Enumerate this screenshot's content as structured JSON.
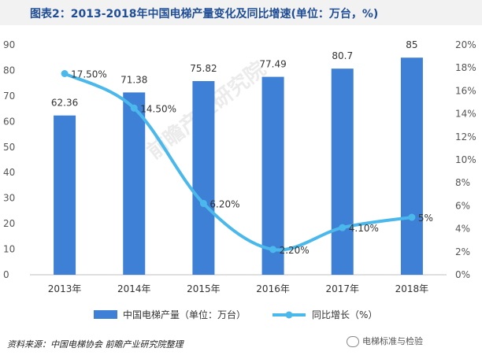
{
  "title": "图表2：2013-2018年中国电梯产量变化及同比增速(单位：万台，%)",
  "source": "资料来源：中国电梯协会 前瞻产业研究院整理",
  "brand": "电梯标准与检验",
  "watermark": "前瞻产业研究院",
  "colors": {
    "bar": "#3e80d6",
    "line": "#4bb8ec",
    "axis_text": "#555555",
    "title_bg": "#f2f2f2",
    "title_text": "#1f4e96"
  },
  "chart_data": {
    "type": "bar+line",
    "title": "图表2：2013-2018年中国电梯产量变化及同比增速(单位：万台，%)",
    "categories": [
      "2013年",
      "2014年",
      "2015年",
      "2016年",
      "2017年",
      "2018年"
    ],
    "series": [
      {
        "name": "中国电梯产量（单位：万台）",
        "type": "bar",
        "axis": "left",
        "values": [
          62.36,
          71.38,
          75.82,
          77.49,
          80.7,
          85
        ],
        "labels": [
          "62.36",
          "71.38",
          "75.82",
          "77.49",
          "80.7",
          "85"
        ]
      },
      {
        "name": "同比增长（%）",
        "type": "line",
        "axis": "right",
        "values": [
          17.5,
          14.5,
          6.2,
          2.2,
          4.1,
          5
        ],
        "labels": [
          "17.50%",
          "14.50%",
          "6.20%",
          "2.20%",
          "4.10%",
          "5%"
        ]
      }
    ],
    "y_left": {
      "min": 0,
      "max": 90,
      "ticks": [
        "0",
        "10",
        "20",
        "30",
        "40",
        "50",
        "60",
        "70",
        "80",
        "90"
      ]
    },
    "y_right": {
      "min": 0,
      "max": 20,
      "ticks": [
        "0%",
        "2%",
        "4%",
        "6%",
        "8%",
        "10%",
        "12%",
        "14%",
        "16%",
        "18%",
        "20%"
      ]
    },
    "grid": false,
    "legend": "bottom"
  }
}
